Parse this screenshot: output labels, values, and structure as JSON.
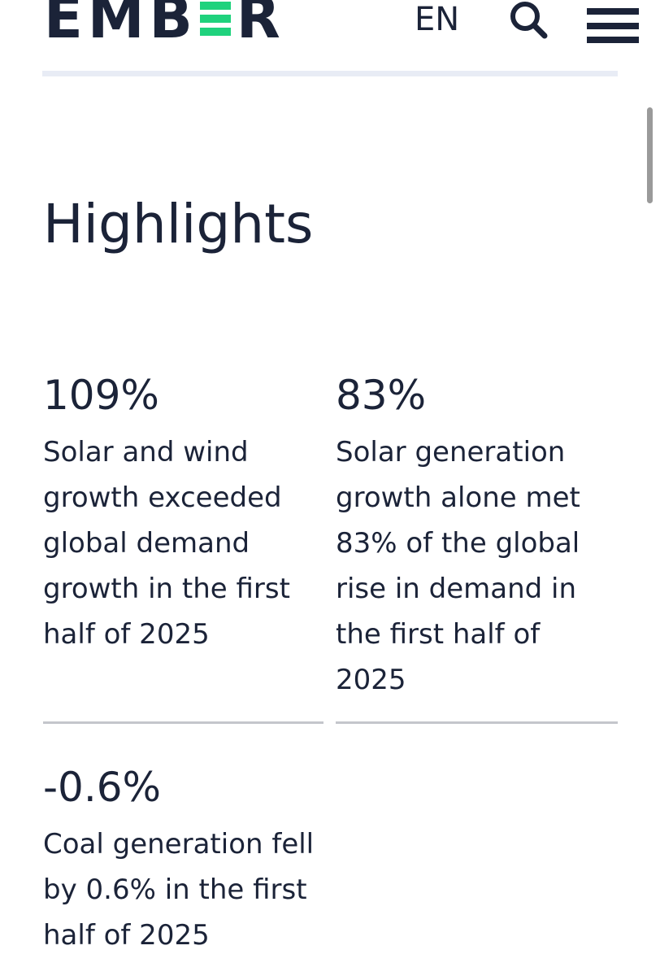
{
  "header": {
    "logo": {
      "part1": "EMB",
      "part2": "R",
      "accent_color": "#1fd27d",
      "alt": "EMBER"
    },
    "language": "EN",
    "search_icon": "search-icon",
    "menu_icon": "hamburger-menu-icon"
  },
  "main": {
    "title": "Highlights",
    "highlights": [
      {
        "value": "109%",
        "description": "Solar and wind growth exceeded global demand growth in the first half of 2025"
      },
      {
        "value": "83%",
        "description": "Solar generation growth alone met 83% of the global rise in demand in the first half of 2025"
      },
      {
        "value": "-0.6%",
        "description": "Coal generation fell by 0.6% in the first half of 2025"
      }
    ]
  },
  "colors": {
    "text": "#1b2338",
    "accent": "#1fd27d",
    "divider": "#c4c6cc",
    "header_rule": "#e8ecf5"
  }
}
